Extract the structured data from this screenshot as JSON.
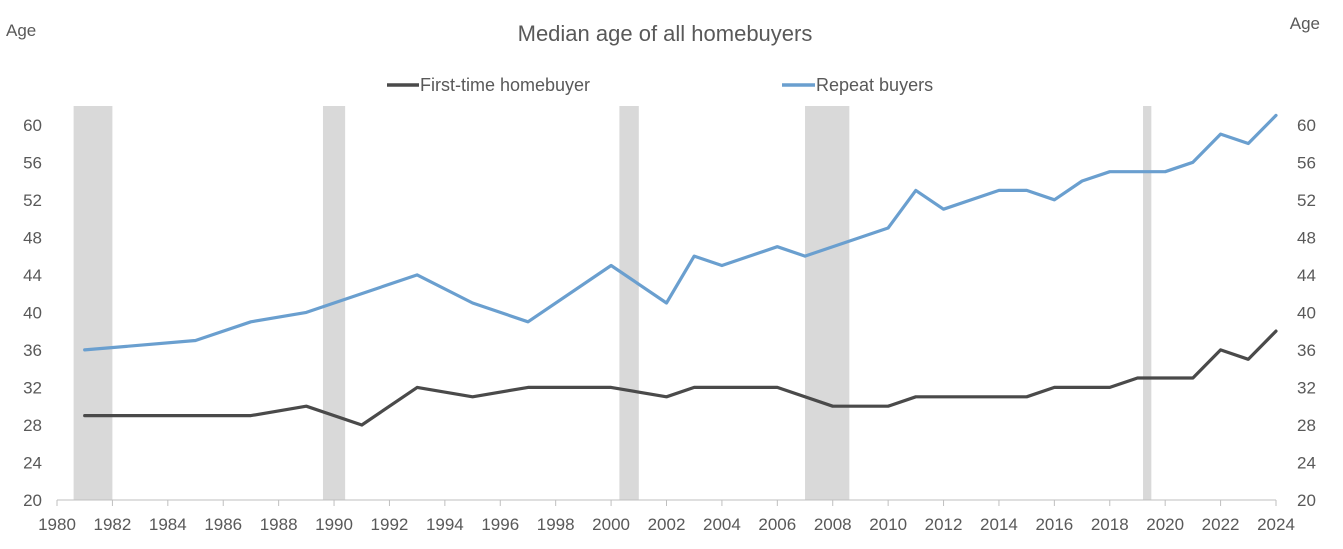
{
  "chart_data": {
    "type": "line",
    "title": "Median age of all homebuyers",
    "ylabel_left": "Age",
    "ylabel_right": "Age",
    "xlim": [
      1980,
      2024
    ],
    "ylim": [
      20,
      60
    ],
    "x_ticks": [
      1980,
      1982,
      1984,
      1986,
      1988,
      1990,
      1992,
      1994,
      1996,
      1998,
      2000,
      2002,
      2004,
      2006,
      2008,
      2010,
      2012,
      2014,
      2016,
      2018,
      2020,
      2022,
      2024
    ],
    "y_ticks": [
      20,
      24,
      28,
      32,
      36,
      40,
      44,
      48,
      52,
      56,
      60
    ],
    "recessions": [
      [
        1980.6,
        1982.0
      ],
      [
        1989.6,
        1990.4
      ],
      [
        2000.3,
        2001.0
      ],
      [
        2007.0,
        2008.6
      ],
      [
        2019.2,
        2019.5
      ]
    ],
    "legend_position": "top-center",
    "series": [
      {
        "name": "First-time homebuyer",
        "color": "#4a4a4a",
        "points": [
          [
            1981,
            29
          ],
          [
            1985,
            29
          ],
          [
            1987,
            29
          ],
          [
            1989,
            30
          ],
          [
            1991,
            28
          ],
          [
            1993,
            32
          ],
          [
            1995,
            31
          ],
          [
            1997,
            32
          ],
          [
            2000,
            32
          ],
          [
            2002,
            31
          ],
          [
            2003,
            32
          ],
          [
            2004,
            32
          ],
          [
            2006,
            32
          ],
          [
            2008,
            30
          ],
          [
            2009,
            30
          ],
          [
            2010,
            30
          ],
          [
            2011,
            31
          ],
          [
            2012,
            31
          ],
          [
            2014,
            31
          ],
          [
            2015,
            31
          ],
          [
            2016,
            32
          ],
          [
            2017,
            32
          ],
          [
            2018,
            32
          ],
          [
            2019,
            33
          ],
          [
            2020,
            33
          ],
          [
            2021,
            33
          ],
          [
            2022,
            36
          ],
          [
            2023,
            35
          ],
          [
            2024,
            38
          ]
        ]
      },
      {
        "name": "Repeat buyers",
        "color": "#6a9fcf",
        "points": [
          [
            1981,
            36
          ],
          [
            1985,
            37
          ],
          [
            1987,
            39
          ],
          [
            1989,
            40
          ],
          [
            1991,
            42
          ],
          [
            1993,
            44
          ],
          [
            1995,
            41
          ],
          [
            1997,
            39
          ],
          [
            2000,
            45
          ],
          [
            2002,
            41
          ],
          [
            2003,
            46
          ],
          [
            2004,
            45
          ],
          [
            2006,
            47
          ],
          [
            2007,
            46
          ],
          [
            2010,
            49
          ],
          [
            2011,
            53
          ],
          [
            2012,
            51
          ],
          [
            2014,
            53
          ],
          [
            2015,
            53
          ],
          [
            2016,
            52
          ],
          [
            2017,
            54
          ],
          [
            2018,
            55
          ],
          [
            2019,
            55
          ],
          [
            2020,
            55
          ],
          [
            2021,
            56
          ],
          [
            2022,
            59
          ],
          [
            2023,
            58
          ],
          [
            2024,
            61
          ]
        ]
      }
    ]
  }
}
